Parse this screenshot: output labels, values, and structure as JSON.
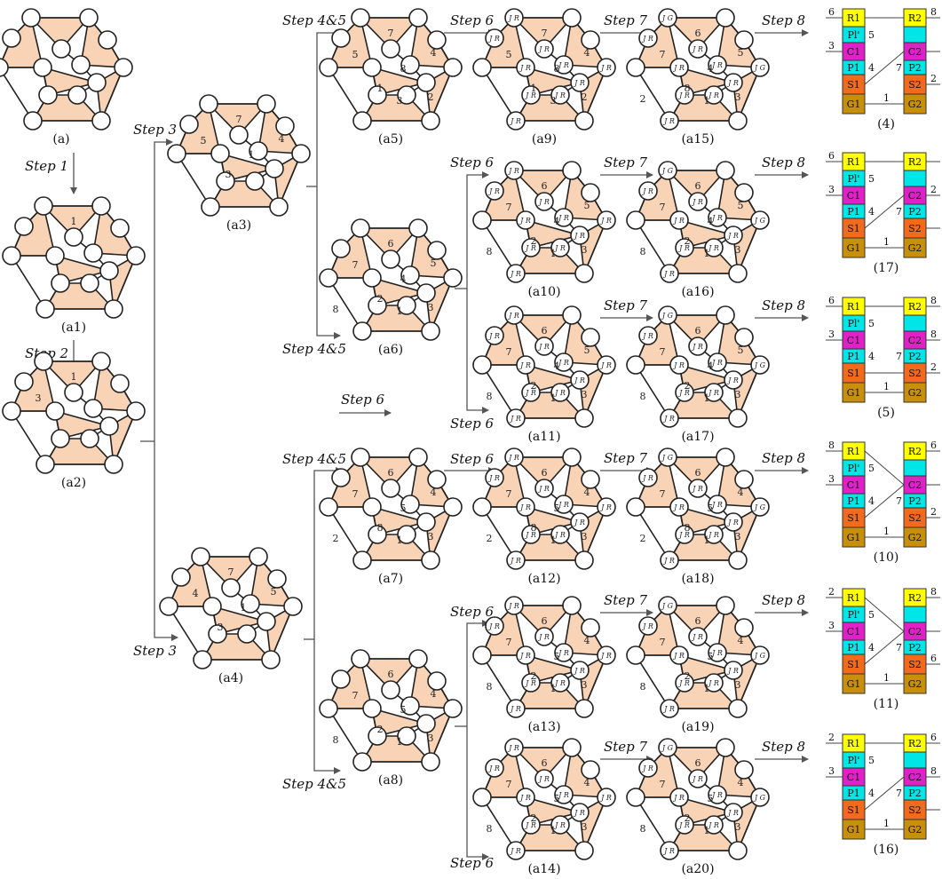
{
  "diagrams": {
    "a": {
      "label": "(a)",
      "edges": [],
      "js": []
    },
    "a1": {
      "label": "(a1)",
      "edges": [
        "1"
      ],
      "js": []
    },
    "a2": {
      "label": "(a2)",
      "edges": [
        "1",
        "3"
      ],
      "js": []
    },
    "a3": {
      "label": "(a3)",
      "edges": [
        "7",
        "5",
        "4",
        "1",
        "3"
      ],
      "js": []
    },
    "a4": {
      "label": "(a4)",
      "edges": [
        "7",
        "4",
        "5",
        "1",
        "3"
      ],
      "js": []
    },
    "a5": {
      "label": "(a5)",
      "edges": [
        "7",
        "5",
        "4",
        "8",
        "1",
        "3",
        "2"
      ],
      "js": []
    },
    "a6": {
      "label": "(a6)",
      "edges": [
        "6",
        "7",
        "5",
        "4",
        "2",
        "1",
        "3",
        "8"
      ],
      "js": []
    },
    "a7": {
      "label": "(a7)",
      "edges": [
        "6",
        "7",
        "4",
        "5",
        "8",
        "1",
        "3",
        "2"
      ],
      "js": []
    },
    "a8": {
      "label": "(a8)",
      "edges": [
        "6",
        "7",
        "4",
        "5",
        "2",
        "1",
        "3",
        "8"
      ],
      "js": []
    },
    "a9": {
      "label": "(a9)",
      "edges": [
        "7",
        "5",
        "4",
        "8",
        "1",
        "3",
        "2"
      ],
      "js": [
        "J_R"
      ]
    },
    "a10": {
      "label": "(a10)",
      "edges": [
        "6",
        "7",
        "5",
        "4",
        "2",
        "1",
        "3",
        "8"
      ],
      "js": [
        "J_R"
      ]
    },
    "a11": {
      "label": "(a11)",
      "edges": [
        "6",
        "7",
        "5",
        "4",
        "2",
        "1",
        "3",
        "8"
      ],
      "js": [
        "J_R"
      ]
    },
    "a12": {
      "label": "(a12)",
      "edges": [
        "6",
        "7",
        "4",
        "5",
        "8",
        "1",
        "3",
        "2"
      ],
      "js": [
        "J_R"
      ]
    },
    "a13": {
      "label": "(a13)",
      "edges": [
        "6",
        "7",
        "4",
        "5",
        "2",
        "1",
        "3",
        "8"
      ],
      "js": [
        "J_R"
      ]
    },
    "a14": {
      "label": "(a14)",
      "edges": [
        "6",
        "7",
        "4",
        "5",
        "2",
        "1",
        "3",
        "8"
      ],
      "js": [
        "J_R"
      ]
    },
    "a15": {
      "label": "(a15)",
      "edges": [
        "6",
        "7",
        "5",
        "4",
        "8",
        "1",
        "3",
        "2"
      ],
      "js": [
        "J_G^c",
        "J_G^o",
        "J_R"
      ]
    },
    "a16": {
      "label": "(a16)",
      "edges": [
        "6",
        "7",
        "5",
        "4",
        "2",
        "1",
        "3",
        "8"
      ],
      "js": [
        "J_G^o",
        "J_G^c",
        "J_R"
      ]
    },
    "a17": {
      "label": "(a17)",
      "edges": [
        "6",
        "7",
        "5",
        "4",
        "2",
        "1",
        "3",
        "8"
      ],
      "js": [
        "J_G^c",
        "J_G^o",
        "J_R"
      ]
    },
    "a18": {
      "label": "(a18)",
      "edges": [
        "6",
        "7",
        "4",
        "5",
        "8",
        "1",
        "3",
        "2"
      ],
      "js": [
        "J_G^o",
        "J_G^c",
        "J_R"
      ]
    },
    "a19": {
      "label": "(a19)",
      "edges": [
        "6",
        "7",
        "4",
        "5",
        "2",
        "1",
        "3",
        "8"
      ],
      "js": [
        "J_G^o",
        "J_G^c",
        "J_R"
      ]
    },
    "a20": {
      "label": "(a20)",
      "edges": [
        "6",
        "7",
        "4",
        "5",
        "2",
        "1",
        "3",
        "8"
      ],
      "js": [
        "J_G^c",
        "J_G^o",
        "J_R"
      ]
    }
  },
  "steps": {
    "step1": "Step 1",
    "step2": "Step 2",
    "step3": "Step 3",
    "step45": "Step 4&5",
    "step6": "Step 6",
    "step7": "Step 7",
    "step8": "Step 8"
  },
  "blocks": {
    "left": [
      "R1",
      "Pl'",
      "C1",
      "P1",
      "S1",
      "G1"
    ],
    "right": [
      "R2",
      "",
      "C2",
      "P2",
      "S2",
      "G2"
    ]
  },
  "block_colors": {
    "R": "#ffff00",
    "P": "#00e5e5",
    "C": "#e020c8",
    "S": "#f26a1b",
    "G": "#c8900a"
  },
  "schemes": [
    {
      "label": "(4)",
      "tl": "6",
      "cl": "3",
      "pl": "5",
      "p1": "4",
      "gl": "1",
      "tr": "8",
      "cr": "",
      "p2": "7",
      "sr": "2"
    },
    {
      "label": "(17)",
      "tl": "6",
      "cl": "3",
      "pl": "5",
      "p1": "4",
      "gl": "1",
      "tr": "",
      "cr": "2",
      "p2": "7",
      "sr": ""
    },
    {
      "label": "(5)",
      "tl": "6",
      "cl": "3",
      "pl": "5",
      "p1": "4",
      "gl": "1",
      "tr": "8",
      "cr": "8",
      "p2": "7",
      "sr": "2"
    },
    {
      "label": "(10)",
      "tl": "8",
      "cl": "3",
      "pl": "5",
      "p1": "4",
      "gl": "1",
      "tr": "6",
      "cr": "",
      "p2": "7",
      "sr": "2"
    },
    {
      "label": "(11)",
      "tl": "2",
      "cl": "3",
      "pl": "5",
      "p1": "4",
      "gl": "1",
      "tr": "8",
      "cr": "",
      "p2": "7",
      "sr": "6"
    },
    {
      "label": "(16)",
      "tl": "2",
      "cl": "3",
      "pl": "5",
      "p1": "4",
      "gl": "1",
      "tr": "6",
      "cr": "8",
      "p2": "7",
      "sr": ""
    }
  ],
  "colors": {
    "fill": "#f8d3b6",
    "stroke": "#222222",
    "arrow": "#555555"
  }
}
